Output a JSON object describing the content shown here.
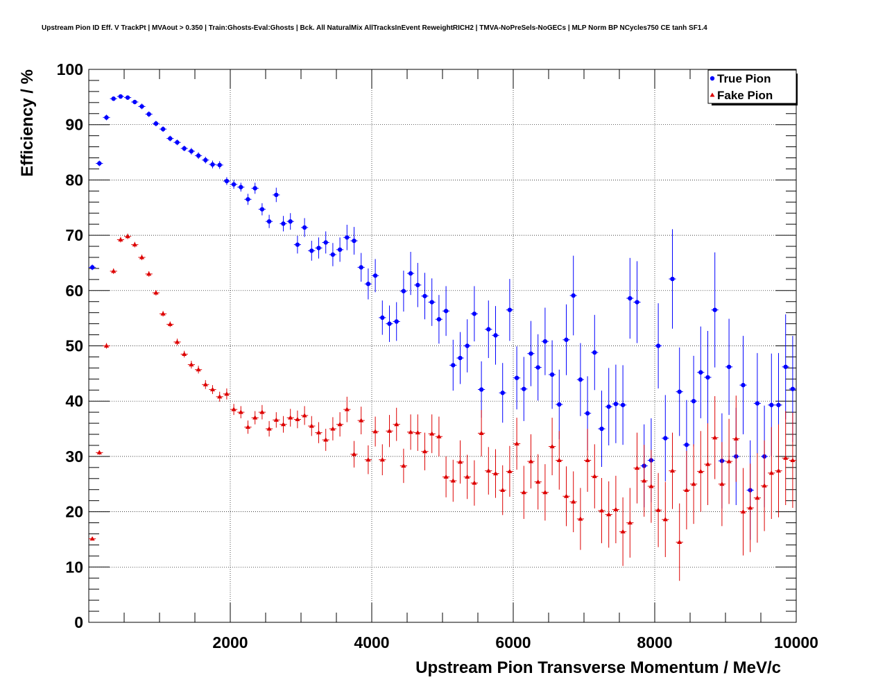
{
  "chart_data": {
    "type": "scatter",
    "title": "Upstream Pion ID Eff. V TrackPt | MVAout > 0.350 | Train:Ghosts-Eval:Ghosts | Bck. All NaturalMix AllTracksInEvent ReweightRICH2 | TMVA-NoPreSels-NoGECs | MLP Norm BP NCycles750 CE tanh SF1.4",
    "xlabel": "Upstream Pion Transverse Momentum / MeV/c",
    "ylabel": "Efficiency / %",
    "xlim": [
      0,
      10000
    ],
    "ylim": [
      0,
      100
    ],
    "grid": true,
    "legend_position": "top-right",
    "x_ticks": [
      2000,
      4000,
      6000,
      8000,
      10000
    ],
    "x_tick_labels": [
      "2000",
      "4000",
      "6000",
      "8000",
      "10000"
    ],
    "y_ticks": [
      0,
      10,
      20,
      30,
      40,
      50,
      60,
      70,
      80,
      90,
      100
    ],
    "y_tick_labels": [
      "0",
      "10",
      "20",
      "30",
      "40",
      "50",
      "60",
      "70",
      "80",
      "90",
      "100"
    ],
    "series": [
      {
        "name": "True Pion",
        "color": "#0000ff",
        "marker": "circle",
        "x": [
          50,
          150,
          250,
          350,
          450,
          550,
          650,
          750,
          850,
          950,
          1050,
          1150,
          1250,
          1350,
          1450,
          1550,
          1650,
          1750,
          1850,
          1950,
          2050,
          2150,
          2250,
          2350,
          2450,
          2550,
          2650,
          2750,
          2850,
          2950,
          3050,
          3150,
          3250,
          3350,
          3450,
          3550,
          3650,
          3750,
          3850,
          3950,
          4050,
          4150,
          4250,
          4350,
          4450,
          4550,
          4650,
          4750,
          4850,
          4950,
          5050,
          5150,
          5250,
          5350,
          5450,
          5550,
          5650,
          5750,
          5850,
          5950,
          6050,
          6150,
          6250,
          6350,
          6450,
          6550,
          6650,
          6750,
          6850,
          6950,
          7050,
          7150,
          7250,
          7350,
          7450,
          7550,
          7650,
          7750,
          7850,
          7950,
          8050,
          8150,
          8250,
          8350,
          8450,
          8550,
          8650,
          8750,
          8850,
          8950,
          9050,
          9150,
          9250,
          9350,
          9450,
          9550,
          9650,
          9750,
          9850,
          9950
        ],
        "y": [
          64.2,
          83.0,
          91.3,
          94.7,
          95.1,
          94.9,
          94.1,
          93.3,
          91.9,
          90.2,
          89.2,
          87.5,
          86.8,
          85.7,
          85.2,
          84.4,
          83.6,
          82.8,
          82.7,
          79.8,
          79.2,
          78.7,
          76.5,
          78.5,
          74.7,
          72.5,
          77.3,
          72.1,
          72.5,
          68.3,
          71.4,
          67.2,
          67.7,
          68.7,
          66.5,
          67.4,
          69.6,
          69.0,
          64.2,
          61.2,
          62.7,
          55.1,
          54.0,
          54.4,
          59.9,
          63.1,
          61.0,
          59.0,
          57.9,
          54.8,
          56.3,
          46.5,
          47.8,
          50.0,
          55.8,
          42.1,
          53.0,
          51.9,
          41.5,
          56.5,
          44.2,
          42.2,
          48.6,
          46.1,
          50.8,
          44.8,
          39.4,
          51.1,
          59.1,
          43.9,
          37.8,
          48.8,
          35.0,
          39.0,
          39.5,
          39.3,
          58.6,
          57.9,
          28.3,
          29.3,
          50.0,
          33.3,
          62.1,
          41.7,
          32.1,
          40.0,
          45.2,
          44.3,
          56.5,
          29.2,
          46.2,
          30.0,
          42.9,
          23.9,
          39.6,
          30.0,
          39.3,
          39.3,
          46.2,
          42.2
        ],
        "yerr": [
          0.5,
          0.5,
          0.5,
          0.4,
          0.4,
          0.4,
          0.4,
          0.5,
          0.5,
          0.5,
          0.5,
          0.5,
          0.5,
          0.5,
          0.6,
          0.6,
          0.6,
          0.7,
          0.7,
          0.7,
          0.8,
          0.8,
          1.0,
          1.0,
          1.1,
          1.2,
          1.3,
          1.4,
          1.5,
          1.6,
          1.7,
          1.8,
          1.9,
          2.0,
          2.1,
          2.2,
          2.3,
          2.5,
          2.6,
          2.8,
          3.0,
          3.1,
          3.3,
          3.5,
          3.7,
          3.9,
          4.0,
          4.2,
          4.3,
          4.4,
          4.5,
          4.6,
          4.7,
          4.8,
          5.0,
          5.1,
          5.2,
          5.3,
          5.4,
          5.6,
          5.7,
          5.8,
          5.9,
          6.0,
          6.1,
          6.2,
          6.3,
          6.4,
          7.2,
          6.6,
          6.7,
          6.8,
          6.9,
          7.0,
          7.1,
          7.2,
          7.3,
          7.4,
          7.5,
          7.6,
          7.7,
          7.8,
          9.0,
          8.0,
          8.1,
          8.2,
          8.3,
          8.4,
          10.4,
          8.6,
          8.7,
          8.8,
          8.9,
          9.0,
          9.1,
          9.2,
          9.3,
          9.4,
          9.5,
          9.6
        ]
      },
      {
        "name": "Fake Pion",
        "color": "#dd0000",
        "marker": "triangle",
        "x": [
          50,
          150,
          250,
          350,
          450,
          550,
          650,
          750,
          850,
          950,
          1050,
          1150,
          1250,
          1350,
          1450,
          1550,
          1650,
          1750,
          1850,
          1950,
          2050,
          2150,
          2250,
          2350,
          2450,
          2550,
          2650,
          2750,
          2850,
          2950,
          3050,
          3150,
          3250,
          3350,
          3450,
          3550,
          3650,
          3750,
          3850,
          3950,
          4050,
          4150,
          4250,
          4350,
          4450,
          4550,
          4650,
          4750,
          4850,
          4950,
          5050,
          5150,
          5250,
          5350,
          5450,
          5550,
          5650,
          5750,
          5850,
          5950,
          6050,
          6150,
          6250,
          6350,
          6450,
          6550,
          6650,
          6750,
          6850,
          6950,
          7050,
          7150,
          7250,
          7350,
          7450,
          7550,
          7650,
          7750,
          7850,
          7950,
          8050,
          8150,
          8250,
          8350,
          8450,
          8550,
          8650,
          8750,
          8850,
          8950,
          9050,
          9150,
          9250,
          9350,
          9450,
          9550,
          9650,
          9750,
          9850,
          9950
        ],
        "y": [
          15.1,
          30.7,
          50.0,
          63.5,
          69.2,
          69.8,
          68.3,
          66.0,
          63.0,
          59.6,
          55.8,
          53.9,
          50.7,
          48.5,
          46.6,
          45.7,
          43.0,
          42.1,
          40.8,
          41.3,
          38.5,
          38.0,
          35.3,
          37.0,
          38.0,
          35.0,
          36.6,
          35.8,
          37.0,
          36.7,
          37.4,
          35.5,
          34.3,
          33.0,
          35.0,
          35.8,
          38.5,
          30.4,
          36.5,
          29.4,
          34.5,
          29.4,
          34.6,
          35.8,
          28.3,
          34.4,
          34.3,
          30.9,
          34.1,
          33.6,
          26.3,
          25.6,
          29.0,
          26.3,
          25.2,
          34.2,
          27.4,
          26.9,
          23.9,
          27.3,
          32.3,
          23.5,
          29.1,
          25.4,
          23.5,
          31.8,
          29.3,
          22.8,
          21.8,
          18.7,
          29.3,
          26.4,
          20.2,
          19.5,
          20.4,
          16.4,
          18.0,
          27.9,
          25.6,
          24.6,
          20.3,
          18.6,
          27.4,
          14.5,
          23.9,
          25.0,
          27.3,
          28.6,
          33.4,
          25.0,
          29.1,
          33.2,
          20.0,
          20.7,
          22.5,
          24.7,
          27.0,
          27.4,
          29.7,
          29.3
        ],
        "yerr": [
          0.3,
          0.4,
          0.5,
          0.5,
          0.5,
          0.5,
          0.5,
          0.5,
          0.5,
          0.5,
          0.5,
          0.5,
          0.6,
          0.6,
          0.7,
          0.7,
          0.8,
          0.8,
          0.9,
          1.0,
          1.0,
          1.1,
          1.2,
          1.2,
          1.3,
          1.4,
          1.4,
          1.5,
          1.6,
          1.6,
          1.7,
          1.8,
          1.9,
          2.0,
          2.1,
          2.2,
          2.3,
          2.4,
          2.5,
          2.6,
          2.7,
          2.8,
          2.9,
          3.0,
          3.1,
          3.2,
          3.3,
          3.4,
          3.5,
          3.6,
          3.7,
          3.8,
          3.9,
          4.0,
          4.1,
          4.2,
          4.3,
          4.4,
          4.5,
          4.6,
          4.7,
          4.8,
          4.9,
          5.0,
          5.1,
          5.2,
          5.3,
          5.4,
          5.5,
          5.6,
          5.7,
          5.8,
          5.9,
          6.0,
          6.1,
          6.2,
          6.3,
          6.4,
          6.5,
          6.6,
          6.7,
          6.8,
          6.9,
          7.0,
          7.1,
          7.2,
          7.3,
          7.4,
          7.5,
          7.6,
          7.7,
          7.8,
          7.9,
          8.0,
          8.1,
          8.2,
          8.3,
          8.4,
          8.5,
          8.6
        ]
      }
    ]
  }
}
